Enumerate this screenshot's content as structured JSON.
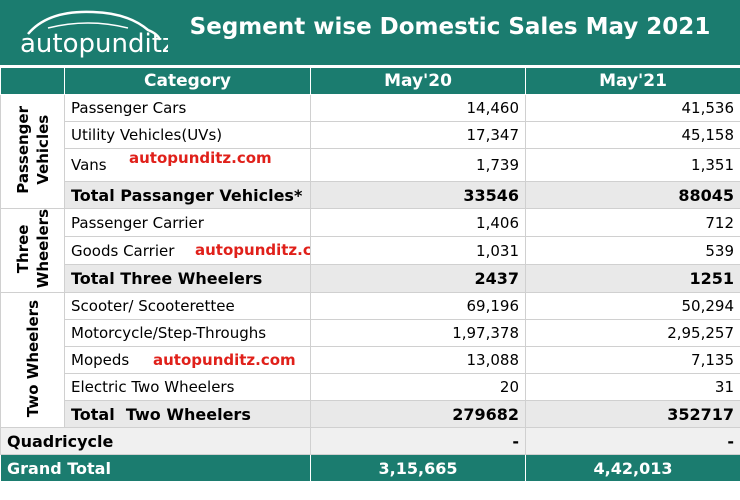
{
  "logo": "autopunditz",
  "title": "Segment wise Domestic Sales May 2021",
  "table": {
    "header": [
      "Category",
      "May'20",
      "May'21"
    ],
    "groups": [
      {
        "label": [
          "Passenger",
          "Vehicles"
        ],
        "rows": [
          [
            "Passenger Cars",
            "14,460",
            "41,536"
          ],
          [
            "Utility Vehicles(UVs)",
            "17,347",
            "45,158"
          ],
          [
            "Vans",
            "1,739",
            "1,351"
          ]
        ],
        "total": [
          "Total Passanger Vehicles*",
          "33546",
          "88045"
        ]
      },
      {
        "label": [
          "Three",
          "Wheelers"
        ],
        "rows": [
          [
            "Passenger Carrier",
            "1,406",
            "712"
          ],
          [
            "Goods Carrier",
            "1,031",
            "539"
          ]
        ],
        "total": [
          "Total Three Wheelers",
          "2437",
          "1251"
        ]
      },
      {
        "label": [
          "Two Wheelers"
        ],
        "rows": [
          [
            "Scooter/ Scooterettee",
            "69,196",
            "50,294"
          ],
          [
            "Motorcycle/Step-Throughs",
            "1,97,378",
            "2,95,257"
          ],
          [
            "Mopeds",
            "13,088",
            "7,135"
          ],
          [
            "Electric Two Wheelers",
            "20",
            "31"
          ]
        ],
        "total": [
          "Total  Two Wheelers",
          "279682",
          "352717"
        ]
      }
    ],
    "quadricycle": [
      "Quadricycle",
      "-",
      "-"
    ],
    "grand_total": [
      "Grand Total",
      "3,15,665",
      "4,42,013"
    ]
  },
  "watermarks": [
    "autopunditz.com",
    "autopunditz.com",
    "autopunditz.com"
  ]
}
